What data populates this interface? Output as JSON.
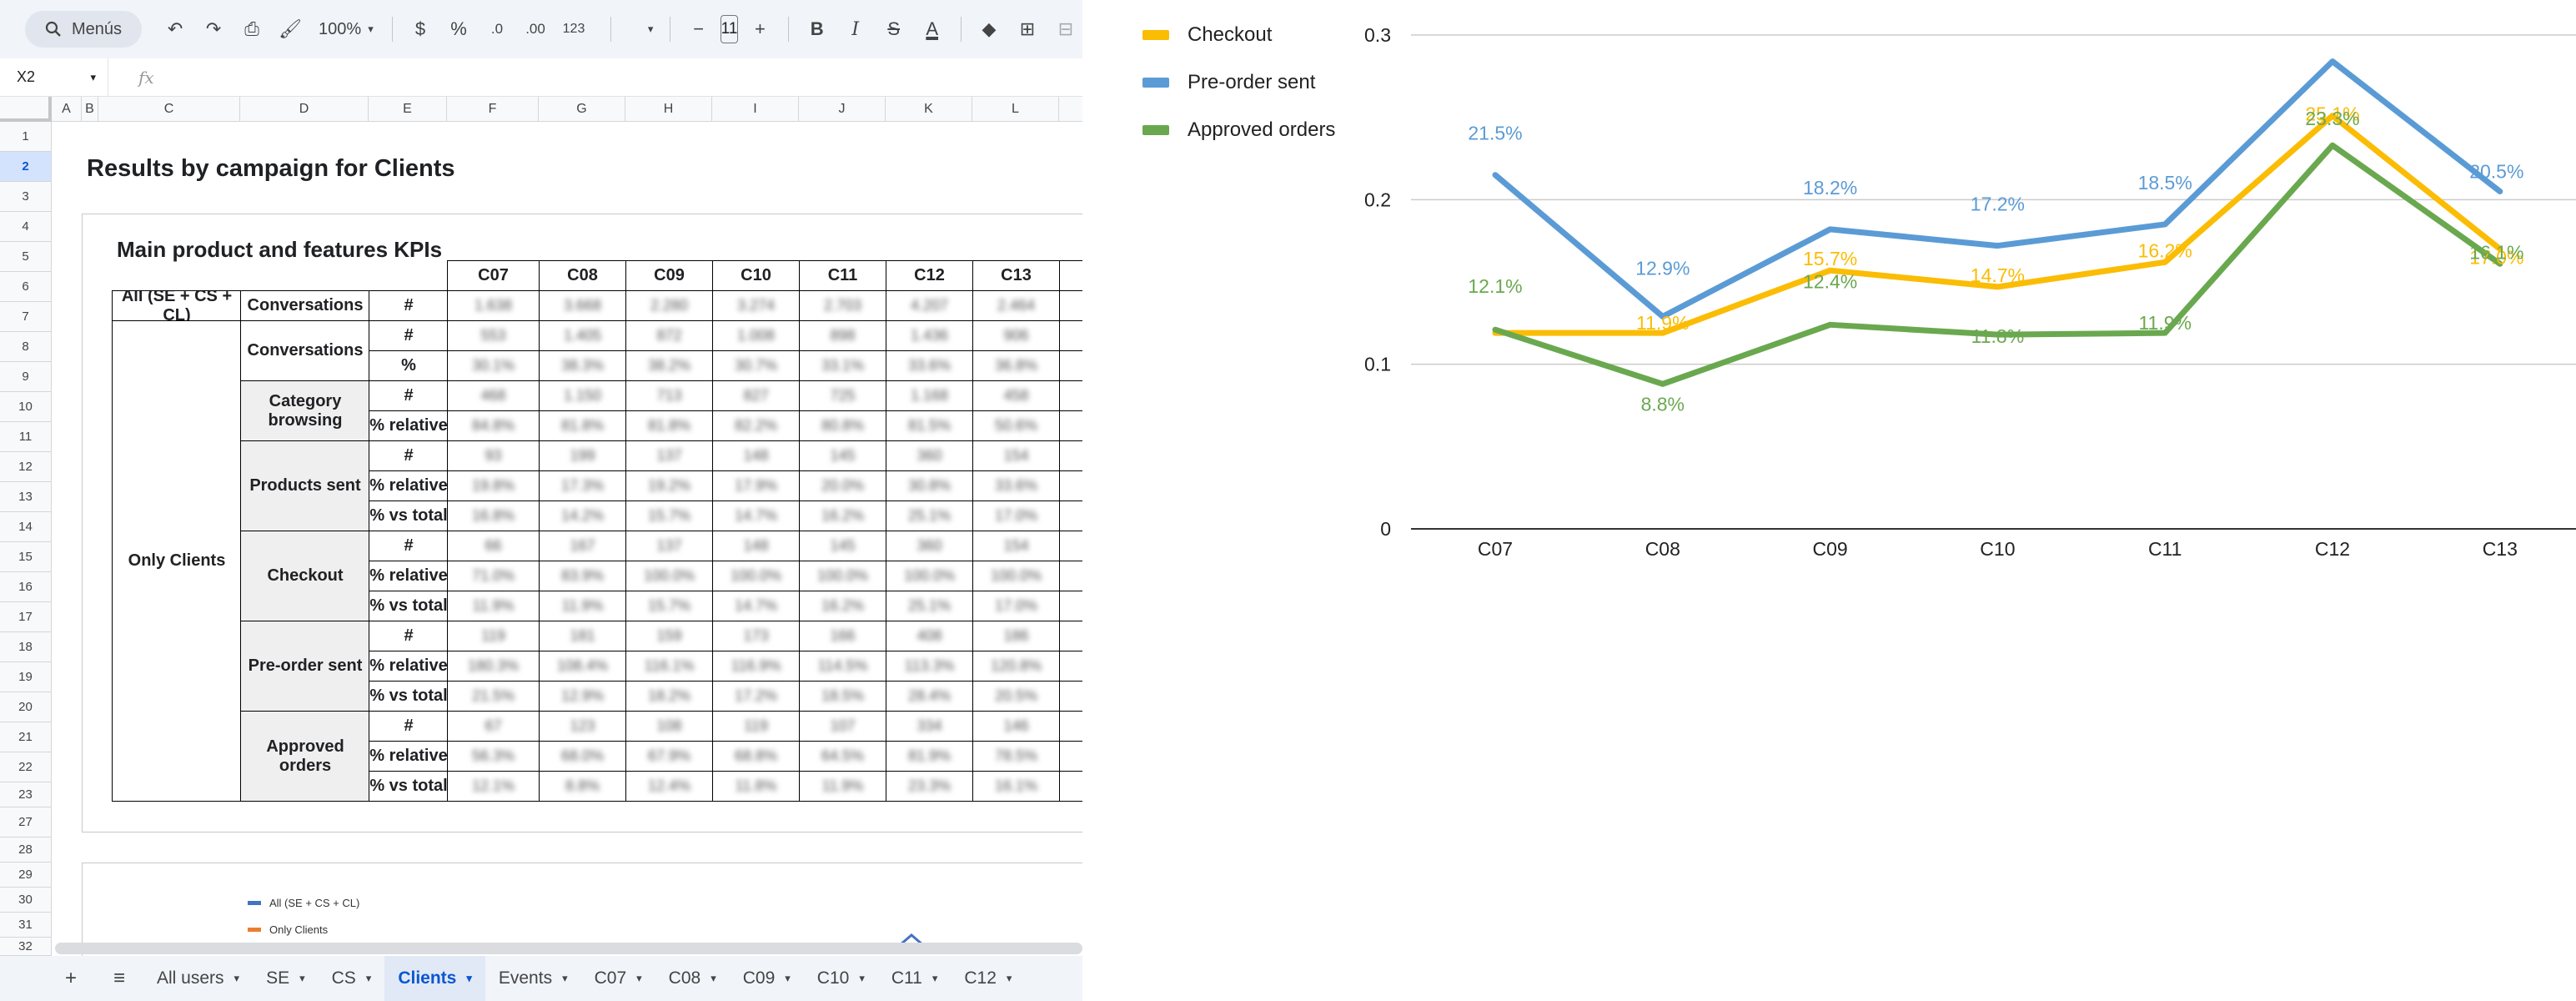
{
  "toolbar": {
    "search_label": "Menús",
    "zoom": "100%",
    "currency": "$",
    "percent": "%",
    "dec_minus": ".0",
    "dec_plus": ".00",
    "number_format": "123",
    "font_size": "11",
    "minus": "−",
    "plus": "+",
    "bold": "B",
    "italic": "I",
    "strike": "S",
    "text_color": "A"
  },
  "formula_bar": {
    "cell_ref": "X2",
    "fx": "fx"
  },
  "columns": [
    "A",
    "B",
    "C",
    "D",
    "E",
    "F",
    "G",
    "H",
    "I",
    "J",
    "K",
    "L"
  ],
  "rows": [
    "1",
    "2",
    "3",
    "4",
    "5",
    "6",
    "7",
    "8",
    "9",
    "10",
    "11",
    "12",
    "13",
    "14",
    "15",
    "16",
    "17",
    "18",
    "19",
    "20",
    "21",
    "22",
    "23",
    "27",
    "28",
    "29",
    "30",
    "31",
    "32"
  ],
  "sheet": {
    "title": "Results by campaign for Clients",
    "table_title": "Main product and features KPIs",
    "header_cols": [
      "C07",
      "C08",
      "C09",
      "C10",
      "C11",
      "C12",
      "C13"
    ],
    "all_label": "All (SE + CS + CL)",
    "conversations_label": "Conversations",
    "hash": "#",
    "only_clients": "Only Clients",
    "pct": "%",
    "pct_relative": "% relative",
    "pct_vs_total": "% vs total",
    "sections": [
      "Conversations",
      "Category browsing",
      "Products sent",
      "Checkout",
      "Pre-order sent",
      "Approved orders"
    ],
    "values": [
      [
        "1.638",
        "3.668",
        "2.280",
        "3.274",
        "2.703",
        "4.207",
        "2.464"
      ],
      [
        "553",
        "1.405",
        "872",
        "1.008",
        "898",
        "1.436",
        "906"
      ],
      [
        "30.1%",
        "38.3%",
        "38.2%",
        "30.7%",
        "33.1%",
        "33.6%",
        "36.8%"
      ],
      [
        "468",
        "1.150",
        "713",
        "827",
        "725",
        "1.168",
        "458"
      ],
      [
        "84.8%",
        "81.8%",
        "81.8%",
        "82.2%",
        "80.8%",
        "81.5%",
        "50.6%"
      ],
      [
        "93",
        "199",
        "137",
        "148",
        "145",
        "360",
        "154"
      ],
      [
        "19.8%",
        "17.3%",
        "19.2%",
        "17.9%",
        "20.0%",
        "30.8%",
        "33.6%"
      ],
      [
        "16.8%",
        "14.2%",
        "15.7%",
        "14.7%",
        "16.2%",
        "25.1%",
        "17.0%"
      ],
      [
        "66",
        "167",
        "137",
        "148",
        "145",
        "360",
        "154"
      ],
      [
        "71.0%",
        "83.9%",
        "100.0%",
        "100.0%",
        "100.0%",
        "100.0%",
        "100.0%"
      ],
      [
        "11.9%",
        "11.9%",
        "15.7%",
        "14.7%",
        "16.2%",
        "25.1%",
        "17.0%"
      ],
      [
        "119",
        "181",
        "159",
        "173",
        "166",
        "408",
        "186"
      ],
      [
        "180.3%",
        "108.4%",
        "116.1%",
        "116.9%",
        "114.5%",
        "113.3%",
        "120.8%"
      ],
      [
        "21.5%",
        "12.9%",
        "18.2%",
        "17.2%",
        "18.5%",
        "28.4%",
        "20.5%"
      ],
      [
        "67",
        "123",
        "108",
        "119",
        "107",
        "334",
        "146"
      ],
      [
        "56.3%",
        "68.0%",
        "67.9%",
        "68.8%",
        "64.5%",
        "81.9%",
        "78.5%"
      ],
      [
        "12.1%",
        "8.8%",
        "12.4%",
        "11.8%",
        "11.9%",
        "23.3%",
        "16.1%"
      ]
    ]
  },
  "mini_chart": {
    "legend": [
      "All (SE + CS + CL)",
      "Only Clients"
    ],
    "colors": [
      "#4472c4",
      "#ed7d31"
    ]
  },
  "tabs": {
    "add": "+",
    "list": "≡",
    "names": [
      "All users",
      "SE",
      "CS",
      "Clients",
      "Events",
      "C07",
      "C08",
      "C09",
      "C10",
      "C11",
      "C12"
    ],
    "active": "Clients"
  },
  "chart_data": {
    "type": "line",
    "categories": [
      "C07",
      "C08",
      "C09",
      "C10",
      "C11",
      "C12",
      "C13"
    ],
    "ylim": [
      0,
      0.3
    ],
    "yticks": [
      "0",
      "0.1",
      "0.2",
      "0.3"
    ],
    "grid": true,
    "legend_position": "left",
    "series": [
      {
        "name": "Checkout",
        "color": "#fbbc04",
        "values": [
          0.119,
          0.119,
          0.157,
          0.147,
          0.162,
          0.251,
          0.17
        ],
        "labels": [
          "",
          "11.9%",
          "15.7%",
          "14.7%",
          "16.2%",
          "25.1%",
          "17.0%"
        ]
      },
      {
        "name": "Pre-order sent",
        "color": "#5b9bd5",
        "values": [
          0.215,
          0.129,
          0.182,
          0.172,
          0.185,
          0.284,
          0.205
        ],
        "labels": [
          "21.5%",
          "12.9%",
          "18.2%",
          "17.2%",
          "18.5%",
          "",
          "20.5%"
        ]
      },
      {
        "name": "Approved orders",
        "color": "#6aa84f",
        "values": [
          0.121,
          0.088,
          0.124,
          0.118,
          0.119,
          0.233,
          0.161
        ],
        "labels": [
          "12.1%",
          "8.8%",
          "12.4%",
          "11.8%",
          "11.9%",
          "23.3%",
          "16.1%"
        ]
      }
    ]
  }
}
